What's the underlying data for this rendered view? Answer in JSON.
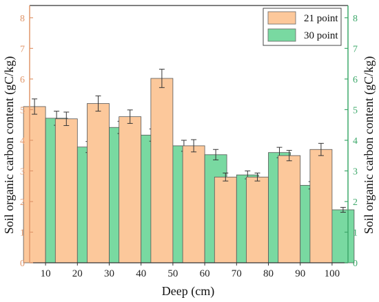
{
  "chart_data": {
    "type": "bar",
    "categories": [
      "10",
      "20",
      "30",
      "40",
      "50",
      "60",
      "70",
      "80",
      "90",
      "100"
    ],
    "series": [
      {
        "name": "21 point",
        "color": "#fcc89b",
        "values": [
          5.1,
          4.7,
          5.2,
          4.77,
          6.02,
          3.82,
          2.8,
          2.8,
          3.5,
          3.7
        ],
        "errors": [
          0.25,
          0.22,
          0.25,
          0.22,
          0.3,
          0.2,
          0.13,
          0.13,
          0.17,
          0.2
        ]
      },
      {
        "name": "30 point",
        "color": "#79d9a1",
        "values": [
          4.72,
          3.78,
          4.42,
          4.17,
          3.82,
          3.53,
          2.87,
          3.6,
          2.53,
          1.73
        ],
        "errors": [
          0.23,
          0.18,
          0.2,
          0.2,
          0.18,
          0.17,
          0.13,
          0.17,
          0.12,
          0.08
        ]
      }
    ],
    "xlabel": "Deep (cm)",
    "ylabel": "Soil organic carbon content (gC/kg)",
    "ylabel_right": "Soil organic carbon content (gC/kg)",
    "ylim": [
      0,
      8.4
    ],
    "yticks": [
      0,
      1,
      2,
      3,
      4,
      5,
      6,
      7,
      8
    ],
    "left_axis_color": "#e0966a",
    "right_axis_color": "#3da86a",
    "legend_position": "top-right",
    "grid": false
  }
}
